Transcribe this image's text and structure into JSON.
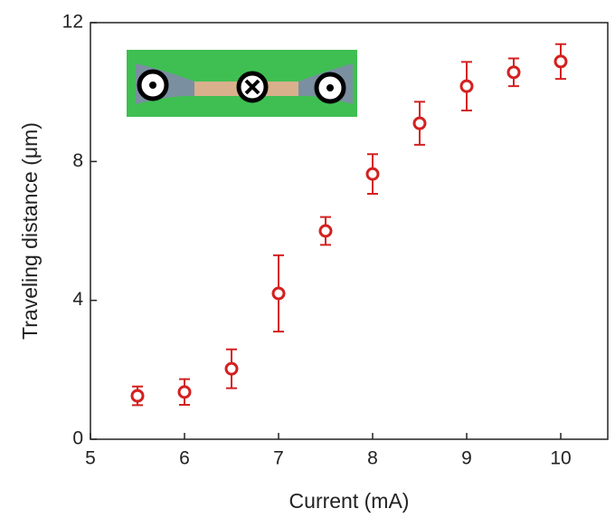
{
  "chart_data": {
    "type": "scatter",
    "x_label": "Current (mA)",
    "y_label": "Traveling distance (μm)",
    "x": [
      5.5,
      6,
      6.5,
      7,
      7.5,
      8,
      8.5,
      9,
      9.5,
      10
    ],
    "values": [
      1.25,
      1.36,
      2.03,
      4.2,
      6.0,
      7.64,
      9.1,
      10.17,
      10.57,
      10.88
    ],
    "errors": [
      0.27,
      0.37,
      0.56,
      1.1,
      0.4,
      0.57,
      0.62,
      0.7,
      0.4,
      0.5
    ],
    "color": "#d42020",
    "xlim": [
      5,
      10.5
    ],
    "xticks": [
      5,
      6,
      7,
      8,
      9,
      10
    ],
    "ylim": [
      0,
      12
    ],
    "yticks": [
      0,
      4,
      8,
      12
    ]
  }
}
